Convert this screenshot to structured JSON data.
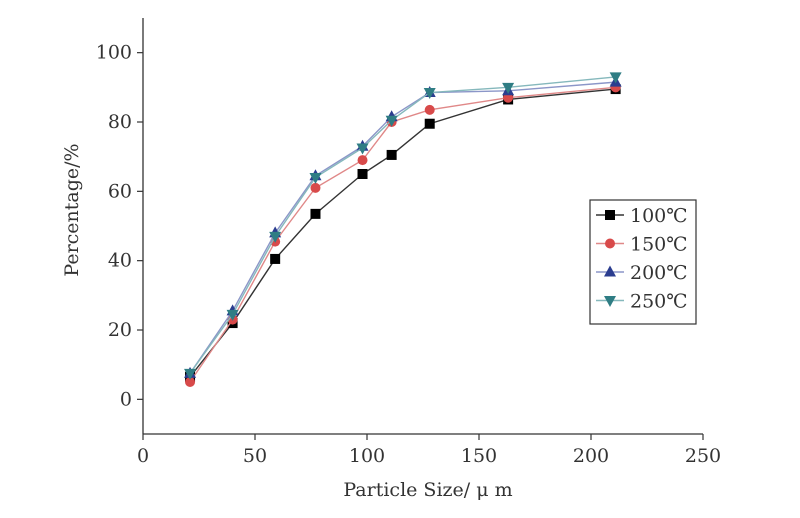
{
  "chart_data": {
    "type": "line",
    "xlabel": "Particle Size/ μ m",
    "ylabel": "Percentage/%",
    "xlim": [
      0,
      250
    ],
    "ylim": [
      -10,
      110
    ],
    "xticks": [
      0,
      50,
      100,
      150,
      200,
      250
    ],
    "yticks": [
      0,
      20,
      40,
      60,
      80,
      100
    ],
    "x": [
      21,
      40,
      59,
      77,
      98,
      111,
      128,
      163,
      211
    ],
    "grid": false,
    "legend_position": "right",
    "series": [
      {
        "name": "100℃",
        "marker": "square",
        "color": "#000000",
        "line_color": "#333333",
        "values": [
          6.5,
          22,
          40.5,
          53.5,
          65,
          70.5,
          79.5,
          86.5,
          89.5
        ]
      },
      {
        "name": "150℃",
        "marker": "circle",
        "color": "#d84a4a",
        "line_color": "#e08888",
        "values": [
          5,
          23,
          45.5,
          61,
          69,
          80,
          83.5,
          87,
          90
        ]
      },
      {
        "name": "200℃",
        "marker": "triangle-up",
        "color": "#2b3d8f",
        "line_color": "#8b96c8",
        "values": [
          7.5,
          25.5,
          48,
          64.5,
          73,
          81.5,
          88.5,
          89,
          91.5
        ]
      },
      {
        "name": "250℃",
        "marker": "triangle-down",
        "color": "#2f7d84",
        "line_color": "#85b8bc",
        "values": [
          7.5,
          24.5,
          47,
          64,
          72.5,
          80.5,
          88.5,
          90,
          93
        ]
      }
    ]
  }
}
